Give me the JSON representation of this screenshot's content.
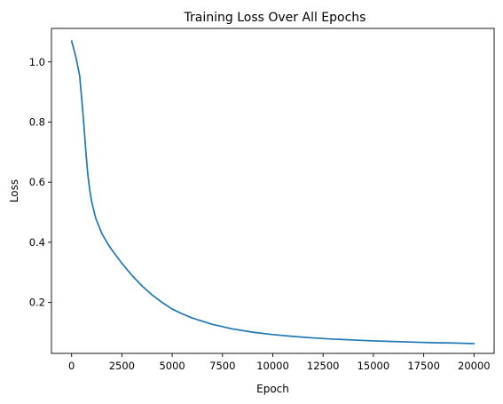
{
  "chart_data": {
    "type": "line",
    "title": "Training Loss Over All Epochs",
    "xlabel": "Epoch",
    "ylabel": "Loss",
    "xlim": [
      -1000,
      21000
    ],
    "ylim": [
      0.0305,
      1.1115
    ],
    "grid": false,
    "legend": "none",
    "x_ticks": [
      0,
      2500,
      5000,
      7500,
      10000,
      12500,
      15000,
      17500,
      20000
    ],
    "y_ticks": [
      0.2,
      0.4,
      0.6,
      0.8,
      1.0
    ],
    "x_tick_labels": [
      "0",
      "2500",
      "5000",
      "7500",
      "10000",
      "12500",
      "15000",
      "17500",
      "20000"
    ],
    "y_tick_labels": [
      "0.2",
      "0.4",
      "0.6",
      "0.8",
      "1.0"
    ],
    "series": [
      {
        "color": "#1f77b4",
        "x": [
          0,
          200,
          400,
          500,
          600,
          700,
          800,
          900,
          1000,
          1200,
          1500,
          1800,
          2000,
          2500,
          3000,
          3500,
          4000,
          4500,
          5000,
          5500,
          6000,
          7000,
          8000,
          9000,
          10000,
          11000,
          12000,
          13000,
          14000,
          15000,
          16000,
          17000,
          18000,
          19000,
          20000
        ],
        "y": [
          1.07,
          1.02,
          0.955,
          0.88,
          0.8,
          0.71,
          0.63,
          0.575,
          0.535,
          0.48,
          0.43,
          0.395,
          0.375,
          0.33,
          0.29,
          0.255,
          0.225,
          0.2,
          0.178,
          0.162,
          0.148,
          0.127,
          0.112,
          0.101,
          0.093,
          0.087,
          0.082,
          0.078,
          0.075,
          0.072,
          0.07,
          0.068,
          0.066,
          0.065,
          0.063
        ]
      }
    ]
  }
}
